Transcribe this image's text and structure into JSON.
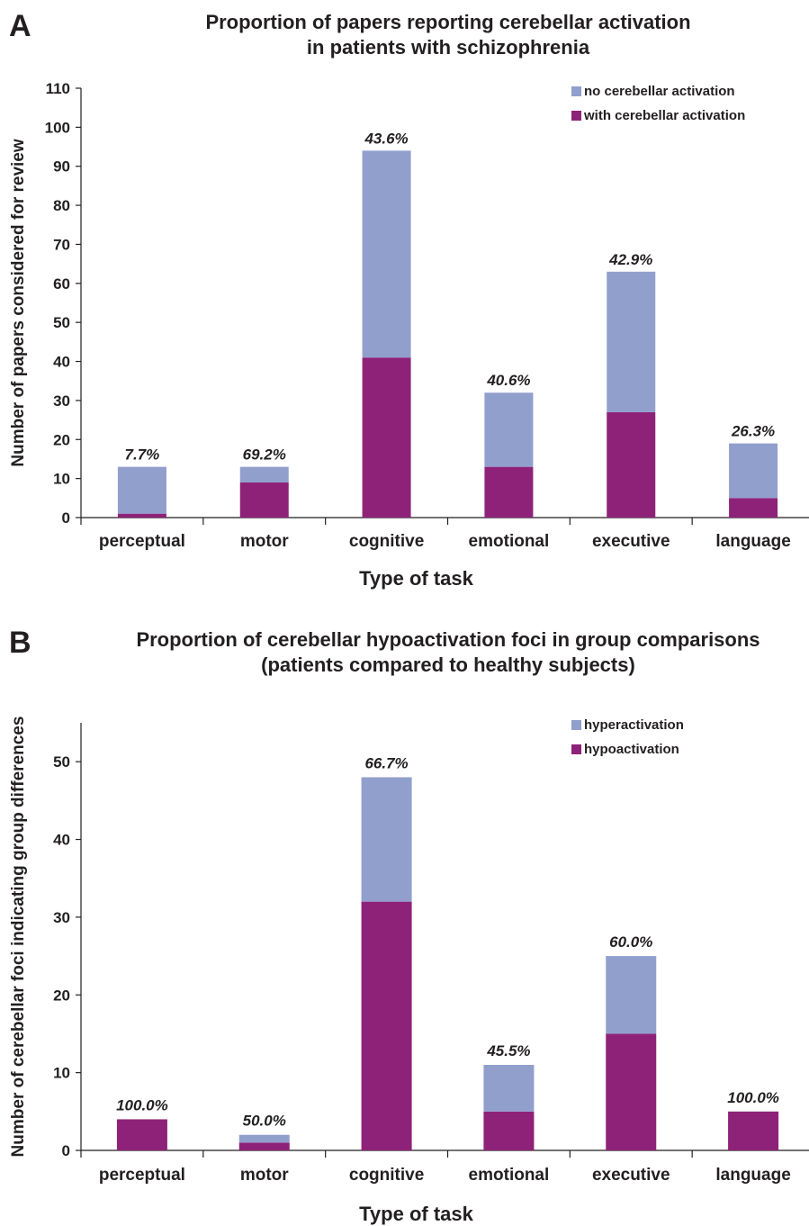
{
  "chart_data": [
    {
      "panel": "A",
      "type": "bar",
      "stacked": true,
      "title": [
        "Proportion  of papers reporting cerebellar activation",
        "in patients with schizophrenia"
      ],
      "xlabel": "Type of task",
      "ylabel": "Number of papers considered for review",
      "ylim": [
        0,
        110
      ],
      "yticks": [
        0,
        10,
        20,
        30,
        40,
        50,
        60,
        70,
        80,
        90,
        100,
        110
      ],
      "categories": [
        "perceptual",
        "motor",
        "cognitive",
        "emotional",
        "executive",
        "language"
      ],
      "series": [
        {
          "name": "with cerebellar activation",
          "color": "#8e2278",
          "values": [
            1,
            9,
            41,
            13,
            27,
            5
          ]
        },
        {
          "name": "no cerebellar activation",
          "color": "#919fcd",
          "values": [
            12,
            4,
            53,
            19,
            36,
            14
          ]
        }
      ],
      "legend": [
        "no cerebellar activation",
        "with cerebellar activation"
      ],
      "legend_position": "top-right",
      "annotations": [
        "7.7%",
        "69.2%",
        "43.6%",
        "40.6%",
        "42.9%",
        "26.3%"
      ]
    },
    {
      "panel": "B",
      "type": "bar",
      "stacked": true,
      "title": [
        "Proportion of cerebellar hypoactivation foci in group comparisons",
        "(patients  compared to healthy subjects)"
      ],
      "xlabel": "Type of task",
      "ylabel": "Number of cerebellar foci indicating group  differences",
      "ylim": [
        0,
        55
      ],
      "yticks": [
        0,
        10,
        20,
        30,
        40,
        50
      ],
      "categories": [
        "perceptual",
        "motor",
        "cognitive",
        "emotional",
        "executive",
        "language"
      ],
      "series": [
        {
          "name": "hypoactivation",
          "color": "#8e2278",
          "values": [
            4,
            1,
            32,
            5,
            15,
            5
          ]
        },
        {
          "name": "hyperactivation",
          "color": "#919fcd",
          "values": [
            0,
            1,
            16,
            6,
            10,
            0
          ]
        }
      ],
      "legend": [
        "hyperactivation",
        "hypoactivation"
      ],
      "legend_position": "top-right",
      "annotations": [
        "100.0%",
        "50.0%",
        "66.7%",
        "45.5%",
        "60.0%",
        "100.0%"
      ]
    }
  ]
}
